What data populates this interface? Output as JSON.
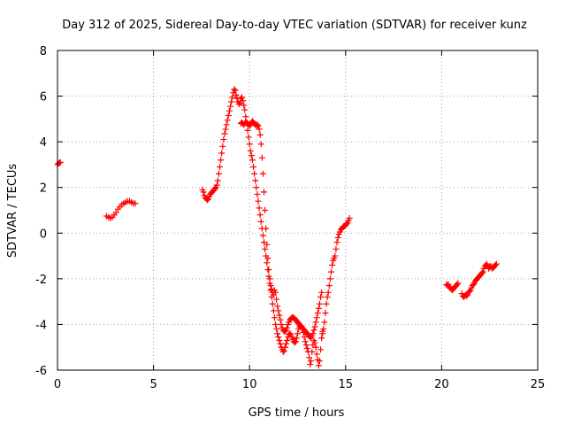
{
  "chart_data": {
    "type": "scatter",
    "title": "Day 312 of 2025, Sidereal Day-to-day VTEC variation (SDTVAR) for receiver kunz",
    "xlabel": "GPS time / hours",
    "ylabel": "SDTVAR / TECUs",
    "xlim": [
      0,
      25
    ],
    "ylim": [
      -6,
      8
    ],
    "xticks": [
      0,
      5,
      10,
      15,
      20,
      25
    ],
    "yticks": [
      -6,
      -4,
      -2,
      0,
      2,
      4,
      6,
      8
    ],
    "grid": true,
    "marker": "+",
    "colors": {
      "series": "#ff0000",
      "grid": "#a0a0a0",
      "axis": "#000000"
    },
    "series": [
      {
        "points": [
          [
            0.0,
            3.0
          ],
          [
            0.05,
            3.05
          ],
          [
            0.1,
            3.08
          ],
          [
            0.15,
            3.1
          ],
          [
            2.55,
            0.75
          ],
          [
            2.65,
            0.7
          ],
          [
            2.75,
            0.65
          ],
          [
            2.85,
            0.7
          ],
          [
            2.95,
            0.8
          ],
          [
            3.05,
            0.9
          ],
          [
            3.15,
            1.05
          ],
          [
            3.25,
            1.15
          ],
          [
            3.35,
            1.25
          ],
          [
            3.45,
            1.3
          ],
          [
            3.55,
            1.35
          ],
          [
            3.65,
            1.4
          ],
          [
            3.75,
            1.4
          ],
          [
            3.85,
            1.35
          ],
          [
            3.95,
            1.3
          ],
          [
            4.05,
            1.3
          ],
          [
            7.55,
            1.9
          ],
          [
            7.6,
            1.8
          ],
          [
            7.65,
            1.65
          ],
          [
            7.7,
            1.55
          ],
          [
            7.75,
            1.5
          ],
          [
            7.8,
            1.45
          ],
          [
            7.85,
            1.5
          ],
          [
            7.9,
            1.6
          ],
          [
            7.95,
            1.7
          ],
          [
            8.0,
            1.75
          ],
          [
            8.05,
            1.8
          ],
          [
            8.1,
            1.85
          ],
          [
            8.15,
            1.9
          ],
          [
            8.2,
            1.95
          ],
          [
            8.25,
            2.0
          ],
          [
            8.3,
            2.1
          ],
          [
            8.35,
            2.3
          ],
          [
            8.4,
            2.6
          ],
          [
            8.45,
            2.9
          ],
          [
            8.5,
            3.2
          ],
          [
            8.55,
            3.5
          ],
          [
            8.6,
            3.8
          ],
          [
            8.65,
            4.1
          ],
          [
            8.7,
            4.35
          ],
          [
            8.75,
            4.55
          ],
          [
            8.8,
            4.75
          ],
          [
            8.85,
            4.95
          ],
          [
            8.9,
            5.15
          ],
          [
            8.95,
            5.35
          ],
          [
            9.0,
            5.55
          ],
          [
            9.05,
            5.75
          ],
          [
            9.1,
            5.95
          ],
          [
            9.15,
            6.15
          ],
          [
            9.2,
            6.3
          ],
          [
            9.25,
            6.25
          ],
          [
            9.3,
            6.05
          ],
          [
            9.35,
            5.9
          ],
          [
            9.4,
            5.75
          ],
          [
            9.45,
            5.65
          ],
          [
            9.5,
            5.7
          ],
          [
            9.55,
            5.9
          ],
          [
            9.6,
            5.95
          ],
          [
            9.65,
            5.8
          ],
          [
            9.7,
            5.6
          ],
          [
            9.75,
            5.4
          ],
          [
            9.8,
            5.1
          ],
          [
            9.85,
            4.8
          ],
          [
            9.9,
            4.5
          ],
          [
            9.95,
            4.2
          ],
          [
            10.0,
            3.9
          ],
          [
            10.05,
            3.6
          ],
          [
            10.1,
            3.4
          ],
          [
            10.15,
            3.2
          ],
          [
            10.2,
            2.9
          ],
          [
            10.25,
            2.6
          ],
          [
            10.3,
            2.3
          ],
          [
            10.35,
            2.0
          ],
          [
            10.4,
            1.7
          ],
          [
            10.45,
            1.4
          ],
          [
            10.5,
            1.1
          ],
          [
            10.55,
            0.8
          ],
          [
            10.6,
            0.5
          ],
          [
            10.65,
            0.2
          ],
          [
            10.7,
            -0.1
          ],
          [
            10.75,
            -0.4
          ],
          [
            10.8,
            -0.7
          ],
          [
            10.85,
            -1.0
          ],
          [
            10.9,
            -1.3
          ],
          [
            10.95,
            -1.6
          ],
          [
            11.0,
            -1.9
          ],
          [
            11.05,
            -2.2
          ],
          [
            11.1,
            -2.5
          ],
          [
            11.15,
            -2.8
          ],
          [
            11.2,
            -3.1
          ],
          [
            11.25,
            -3.4
          ],
          [
            11.3,
            -3.7
          ],
          [
            11.35,
            -4.0
          ],
          [
            11.4,
            -4.2
          ],
          [
            11.45,
            -4.4
          ],
          [
            11.5,
            -4.55
          ],
          [
            11.55,
            -4.7
          ],
          [
            11.6,
            -4.85
          ],
          [
            11.65,
            -5.0
          ],
          [
            11.7,
            -5.1
          ],
          [
            11.75,
            -5.2
          ],
          [
            11.8,
            -5.15
          ],
          [
            11.85,
            -5.0
          ],
          [
            11.9,
            -4.85
          ],
          [
            11.95,
            -4.7
          ],
          [
            12.0,
            -4.55
          ],
          [
            12.05,
            -4.45
          ],
          [
            12.1,
            -4.4
          ],
          [
            12.15,
            -4.45
          ],
          [
            12.2,
            -4.55
          ],
          [
            12.25,
            -4.65
          ],
          [
            12.3,
            -4.75
          ],
          [
            12.35,
            -4.8
          ],
          [
            12.4,
            -4.75
          ],
          [
            12.45,
            -4.6
          ],
          [
            12.5,
            -4.4
          ],
          [
            12.55,
            -4.2
          ],
          [
            12.6,
            -4.1
          ],
          [
            12.65,
            -4.05
          ],
          [
            12.7,
            -4.1
          ],
          [
            12.75,
            -4.2
          ],
          [
            12.8,
            -4.35
          ],
          [
            12.85,
            -4.55
          ],
          [
            12.9,
            -4.75
          ],
          [
            12.95,
            -4.9
          ],
          [
            13.0,
            -5.05
          ],
          [
            13.05,
            -5.2
          ],
          [
            13.1,
            -5.45
          ],
          [
            13.15,
            -5.75
          ],
          [
            13.2,
            -5.6
          ],
          [
            13.25,
            -5.2
          ],
          [
            13.3,
            -4.9
          ],
          [
            13.35,
            -4.7
          ],
          [
            13.4,
            -4.8
          ],
          [
            13.45,
            -5.0
          ],
          [
            13.5,
            -5.3
          ],
          [
            13.55,
            -5.55
          ],
          [
            13.6,
            -5.8
          ],
          [
            13.65,
            -5.6
          ],
          [
            13.7,
            -5.1
          ],
          [
            13.75,
            -4.6
          ],
          [
            13.8,
            -4.3
          ],
          [
            9.55,
            4.8
          ],
          [
            9.6,
            4.85
          ],
          [
            9.65,
            4.8
          ],
          [
            9.7,
            4.75
          ],
          [
            9.75,
            4.8
          ],
          [
            9.8,
            4.85
          ],
          [
            9.85,
            4.85
          ],
          [
            9.9,
            4.8
          ],
          [
            9.95,
            4.75
          ],
          [
            10.0,
            4.7
          ],
          [
            10.05,
            4.75
          ],
          [
            10.1,
            4.85
          ],
          [
            10.15,
            4.9
          ],
          [
            10.2,
            4.85
          ],
          [
            10.25,
            4.8
          ],
          [
            10.3,
            4.75
          ],
          [
            10.35,
            4.7
          ],
          [
            10.4,
            4.75
          ],
          [
            10.45,
            4.7
          ],
          [
            10.5,
            4.55
          ],
          [
            10.55,
            4.3
          ],
          [
            10.6,
            3.9
          ],
          [
            10.65,
            3.3
          ],
          [
            10.7,
            2.6
          ],
          [
            10.75,
            1.8
          ],
          [
            10.8,
            1.0
          ],
          [
            10.85,
            0.2
          ],
          [
            10.9,
            -0.5
          ],
          [
            10.95,
            -1.1
          ],
          [
            11.0,
            -1.6
          ],
          [
            11.05,
            -2.0
          ],
          [
            11.1,
            -2.3
          ],
          [
            11.15,
            -2.45
          ],
          [
            11.2,
            -2.6
          ],
          [
            11.25,
            -2.7
          ],
          [
            11.3,
            -2.5
          ],
          [
            11.35,
            -2.6
          ],
          [
            11.4,
            -2.9
          ],
          [
            11.45,
            -3.2
          ],
          [
            11.5,
            -3.4
          ],
          [
            11.55,
            -3.6
          ],
          [
            11.6,
            -3.8
          ],
          [
            11.65,
            -4.0
          ],
          [
            11.7,
            -4.15
          ],
          [
            11.75,
            -4.25
          ],
          [
            11.8,
            -4.3
          ],
          [
            11.85,
            -4.3
          ],
          [
            11.9,
            -4.25
          ],
          [
            11.95,
            -4.15
          ],
          [
            12.0,
            -4.0
          ],
          [
            12.05,
            -3.9
          ],
          [
            12.1,
            -3.8
          ],
          [
            12.15,
            -3.75
          ],
          [
            12.2,
            -3.7
          ],
          [
            12.25,
            -3.7
          ],
          [
            12.3,
            -3.7
          ],
          [
            12.35,
            -3.75
          ],
          [
            12.4,
            -3.8
          ],
          [
            12.45,
            -3.85
          ],
          [
            12.5,
            -3.9
          ],
          [
            12.55,
            -3.95
          ],
          [
            12.6,
            -4.0
          ],
          [
            12.65,
            -4.05
          ],
          [
            12.7,
            -4.1
          ],
          [
            12.75,
            -4.15
          ],
          [
            12.8,
            -4.2
          ],
          [
            12.85,
            -4.25
          ],
          [
            12.9,
            -4.3
          ],
          [
            12.95,
            -4.35
          ],
          [
            13.0,
            -4.4
          ],
          [
            13.05,
            -4.45
          ],
          [
            13.1,
            -4.5
          ],
          [
            13.15,
            -4.55
          ],
          [
            13.2,
            -4.6
          ],
          [
            13.25,
            -4.5
          ],
          [
            13.3,
            -4.4
          ],
          [
            13.35,
            -4.25
          ],
          [
            13.4,
            -4.1
          ],
          [
            13.45,
            -3.9
          ],
          [
            13.5,
            -3.7
          ],
          [
            13.55,
            -3.5
          ],
          [
            13.6,
            -3.3
          ],
          [
            13.65,
            -3.1
          ],
          [
            13.7,
            -2.8
          ],
          [
            13.75,
            -2.6
          ],
          [
            13.8,
            -4.4
          ],
          [
            13.85,
            -4.2
          ],
          [
            13.9,
            -3.9
          ],
          [
            13.95,
            -3.5
          ],
          [
            14.0,
            -3.1
          ],
          [
            14.05,
            -2.8
          ],
          [
            14.1,
            -2.6
          ],
          [
            14.15,
            -2.3
          ],
          [
            14.2,
            -2.0
          ],
          [
            14.25,
            -1.7
          ],
          [
            14.3,
            -1.4
          ],
          [
            14.35,
            -1.2
          ],
          [
            14.4,
            -1.1
          ],
          [
            14.45,
            -1.0
          ],
          [
            14.5,
            -0.7
          ],
          [
            14.55,
            -0.4
          ],
          [
            14.6,
            -0.2
          ],
          [
            14.65,
            -0.05
          ],
          [
            14.7,
            0.05
          ],
          [
            14.75,
            0.15
          ],
          [
            14.8,
            0.2
          ],
          [
            14.85,
            0.25
          ],
          [
            14.9,
            0.3
          ],
          [
            14.95,
            0.3
          ],
          [
            15.0,
            0.35
          ],
          [
            15.05,
            0.4
          ],
          [
            15.1,
            0.45
          ],
          [
            15.15,
            0.55
          ],
          [
            15.2,
            0.65
          ],
          [
            20.25,
            -2.25
          ],
          [
            20.3,
            -2.3
          ],
          [
            20.35,
            -2.25
          ],
          [
            20.4,
            -2.35
          ],
          [
            20.45,
            -2.4
          ],
          [
            20.5,
            -2.45
          ],
          [
            20.55,
            -2.5
          ],
          [
            20.6,
            -2.45
          ],
          [
            20.65,
            -2.4
          ],
          [
            20.7,
            -2.35
          ],
          [
            20.75,
            -2.3
          ],
          [
            20.8,
            -2.25
          ],
          [
            20.85,
            -2.2
          ],
          [
            21.05,
            -2.65
          ],
          [
            21.1,
            -2.75
          ],
          [
            21.15,
            -2.8
          ],
          [
            21.2,
            -2.75
          ],
          [
            21.25,
            -2.7
          ],
          [
            21.3,
            -2.75
          ],
          [
            21.35,
            -2.7
          ],
          [
            21.4,
            -2.6
          ],
          [
            21.45,
            -2.55
          ],
          [
            21.5,
            -2.5
          ],
          [
            21.55,
            -2.4
          ],
          [
            21.6,
            -2.3
          ],
          [
            21.65,
            -2.25
          ],
          [
            21.7,
            -2.2
          ],
          [
            21.75,
            -2.1
          ],
          [
            21.8,
            -2.05
          ],
          [
            21.85,
            -2.0
          ],
          [
            21.9,
            -1.95
          ],
          [
            21.95,
            -1.9
          ],
          [
            22.0,
            -1.85
          ],
          [
            22.05,
            -1.8
          ],
          [
            22.1,
            -1.75
          ],
          [
            22.15,
            -1.7
          ],
          [
            22.2,
            -1.55
          ],
          [
            22.25,
            -1.45
          ],
          [
            22.3,
            -1.4
          ],
          [
            22.35,
            -1.35
          ],
          [
            22.4,
            -1.45
          ],
          [
            22.45,
            -1.55
          ],
          [
            22.5,
            -1.5
          ],
          [
            22.55,
            -1.45
          ],
          [
            22.6,
            -1.5
          ],
          [
            22.65,
            -1.55
          ],
          [
            22.7,
            -1.5
          ],
          [
            22.75,
            -1.45
          ],
          [
            22.8,
            -1.4
          ],
          [
            22.85,
            -1.35
          ]
        ]
      }
    ]
  }
}
